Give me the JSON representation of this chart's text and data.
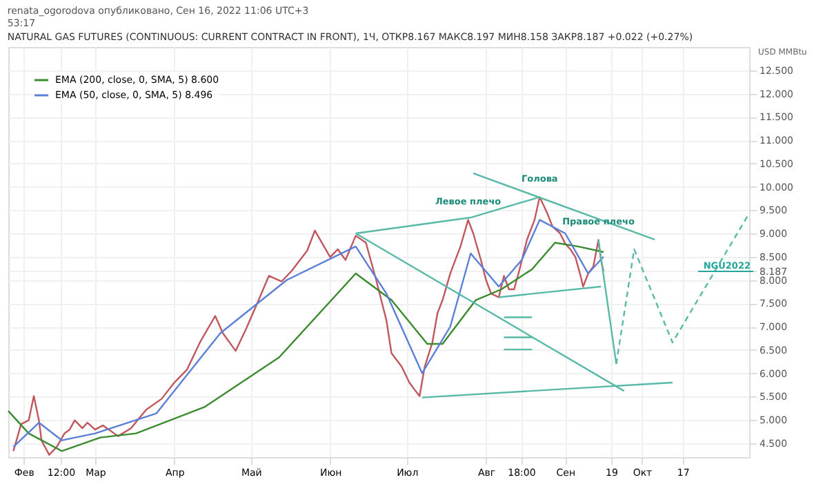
{
  "chart_data": {
    "type": "line",
    "title": "NATURAL GAS FUTURES (CONTINUOUS: CURRENT CONTRACT IN FRONT), 1Ч, ОТКР8.167 МАКС8.197 МИН8.158 ЗАКР8.187 +0.022 (+0.27%)",
    "ylabel": "USD MMBtu",
    "xlim": [
      "2022-01-26",
      "2022-11-12"
    ],
    "ylim": [
      4.2,
      13.0
    ],
    "xticks": [
      {
        "value": "2022-02-01",
        "label": "Фев"
      },
      {
        "value": "2022-02-15T12:00",
        "label": "12:00"
      },
      {
        "value": "2022-03-01",
        "label": "Мар"
      },
      {
        "value": "2022-04-01",
        "label": "Апр"
      },
      {
        "value": "2022-05-01",
        "label": "Май"
      },
      {
        "value": "2022-06-01",
        "label": "Июн"
      },
      {
        "value": "2022-07-01",
        "label": "Июл"
      },
      {
        "value": "2022-08-01",
        "label": "Авг"
      },
      {
        "value": "2022-08-14T18:00",
        "label": "18:00"
      },
      {
        "value": "2022-09-01",
        "label": "Сен"
      },
      {
        "value": "2022-09-19",
        "label": "19"
      },
      {
        "value": "2022-10-01",
        "label": "Окт"
      },
      {
        "value": "2022-10-17",
        "label": "17"
      }
    ],
    "yticks": [
      {
        "value": 4.5,
        "label": "4.500"
      },
      {
        "value": 5.0,
        "label": "5.000"
      },
      {
        "value": 5.5,
        "label": "5.500"
      },
      {
        "value": 6.0,
        "label": "6.000"
      },
      {
        "value": 6.5,
        "label": "6.500"
      },
      {
        "value": 7.0,
        "label": "7.000"
      },
      {
        "value": 7.5,
        "label": "7.500"
      },
      {
        "value": 8.0,
        "label": "8.000"
      },
      {
        "value": 8.187,
        "label": "8.187"
      },
      {
        "value": 8.5,
        "label": "8.500"
      },
      {
        "value": 9.0,
        "label": "9.000"
      },
      {
        "value": 9.5,
        "label": "9.500"
      },
      {
        "value": 10.0,
        "label": "10.000"
      },
      {
        "value": 10.5,
        "label": "10.500"
      },
      {
        "value": 11.0,
        "label": "11.000"
      },
      {
        "value": 11.5,
        "label": "11.500"
      },
      {
        "value": 12.0,
        "label": "12.000"
      },
      {
        "value": 12.5,
        "label": "12.500"
      }
    ],
    "grid": true,
    "legend": "top left",
    "marker": "none",
    "line_style": "solid",
    "series": [
      {
        "color": "#c0575d",
        "x": [
          "2022-01-28",
          "2022-01-30",
          "2022-01-31",
          "2022-02-03",
          "2022-02-05",
          "2022-02-07",
          "2022-02-08",
          "2022-02-11",
          "2022-02-14",
          "2022-02-17",
          "2022-02-19",
          "2022-02-21",
          "2022-02-24",
          "2022-02-26",
          "2022-03-01",
          "2022-03-04",
          "2022-03-10",
          "2022-03-15",
          "2022-03-21",
          "2022-03-27",
          "2022-04-01",
          "2022-04-06",
          "2022-04-11",
          "2022-04-17",
          "2022-04-20",
          "2022-04-25",
          "2022-04-29",
          "2022-05-04",
          "2022-05-08",
          "2022-05-13",
          "2022-05-17",
          "2022-05-23",
          "2022-05-26",
          "2022-06-01",
          "2022-06-04",
          "2022-06-07",
          "2022-06-11",
          "2022-06-15",
          "2022-06-19",
          "2022-06-23",
          "2022-06-25",
          "2022-06-29",
          "2022-07-02",
          "2022-07-04",
          "2022-07-06",
          "2022-07-08",
          "2022-07-11",
          "2022-07-13",
          "2022-07-15",
          "2022-07-18",
          "2022-07-22",
          "2022-07-25",
          "2022-07-27",
          "2022-07-30",
          "2022-08-01",
          "2022-08-03",
          "2022-08-06",
          "2022-08-08",
          "2022-08-10",
          "2022-08-12",
          "2022-08-14",
          "2022-08-17",
          "2022-08-20",
          "2022-08-22",
          "2022-08-25",
          "2022-08-27",
          "2022-08-30",
          "2022-09-01",
          "2022-09-03",
          "2022-09-05",
          "2022-09-07",
          "2022-09-08",
          "2022-09-10",
          "2022-09-12",
          "2022-09-13",
          "2022-09-14",
          "2022-09-15",
          "2022-09-16"
        ],
        "values": [
          4.33,
          4.71,
          4.91,
          4.99,
          5.51,
          4.99,
          4.56,
          4.25,
          4.42,
          4.71,
          4.79,
          4.99,
          4.82,
          4.94,
          4.79,
          4.88,
          4.65,
          4.82,
          5.22,
          5.45,
          5.8,
          6.08,
          6.66,
          7.23,
          6.86,
          6.48,
          6.94,
          7.57,
          8.09,
          7.97,
          8.2,
          8.63,
          9.06,
          8.49,
          8.66,
          8.43,
          8.95,
          8.8,
          8.0,
          7.14,
          6.43,
          6.14,
          5.8,
          5.65,
          5.51,
          6.14,
          6.66,
          7.29,
          7.57,
          8.14,
          8.72,
          9.29,
          9.0,
          8.43,
          8.0,
          7.71,
          7.63,
          8.09,
          7.8,
          7.8,
          8.2,
          8.86,
          9.29,
          9.78,
          9.43,
          9.15,
          9.0,
          8.78,
          8.66,
          8.49,
          8.09,
          7.86,
          8.14,
          8.29,
          8.57,
          8.86,
          8.43,
          8.19
        ]
      },
      {
        "name": "EMA (200, close, 0, SMA, 5) 8.600",
        "color": "#3a8a2e",
        "x": [
          "2022-01-26",
          "2022-02-03",
          "2022-02-16",
          "2022-03-03",
          "2022-03-17",
          "2022-04-13",
          "2022-05-12",
          "2022-06-11",
          "2022-06-25",
          "2022-07-09",
          "2022-07-15",
          "2022-07-28",
          "2022-08-07",
          "2022-08-19",
          "2022-08-28",
          "2022-09-06",
          "2022-09-16"
        ],
        "values": [
          5.19,
          4.71,
          4.33,
          4.62,
          4.71,
          5.28,
          6.34,
          8.14,
          7.57,
          6.63,
          6.63,
          7.57,
          7.8,
          8.23,
          8.8,
          8.72,
          8.6
        ]
      },
      {
        "name": "EMA (50, close, 0, SMA, 5) 8.496",
        "color": "#5b7fd6",
        "x": [
          "2022-01-28",
          "2022-02-07",
          "2022-02-16",
          "2022-03-01",
          "2022-03-25",
          "2022-04-19",
          "2022-05-15",
          "2022-06-11",
          "2022-06-23",
          "2022-07-07",
          "2022-07-18",
          "2022-07-26",
          "2022-08-06",
          "2022-08-15",
          "2022-08-22",
          "2022-09-01",
          "2022-09-10",
          "2022-09-16"
        ],
        "values": [
          4.42,
          4.94,
          4.56,
          4.71,
          5.14,
          6.86,
          8.0,
          8.72,
          7.71,
          6.0,
          7.0,
          8.57,
          7.86,
          8.43,
          9.29,
          9.0,
          8.14,
          8.5
        ]
      },
      {
        "color": "#58b9a8",
        "x": [
          "2022-07-27",
          "2022-10-06"
        ],
        "values": [
          10.29,
          8.87
        ]
      },
      {
        "color": "#58b9a8",
        "x": [
          "2022-06-11",
          "2022-07-26",
          "2022-08-22"
        ],
        "values": [
          9.0,
          9.34,
          9.78
        ]
      },
      {
        "color": "#58b9a8",
        "x": [
          "2022-07-07",
          "2022-10-13"
        ],
        "values": [
          5.48,
          5.8
        ]
      },
      {
        "color": "#58b9a8",
        "x": [
          "2022-06-11",
          "2022-09-24"
        ],
        "values": [
          9.0,
          5.62
        ]
      },
      {
        "color": "#58b9a8",
        "x": [
          "2022-08-06",
          "2022-09-15"
        ],
        "values": [
          7.63,
          7.86
        ]
      },
      {
        "color": "#58b9a8",
        "x": [
          "2022-09-14",
          "2022-09-21"
        ],
        "values": [
          8.86,
          6.2
        ]
      },
      {
        "color": "#58b9a8",
        "line_style": "dashed",
        "x": [
          "2022-09-21",
          "2022-09-28",
          "2022-10-13",
          "2022-11-12"
        ],
        "values": [
          6.2,
          8.66,
          6.66,
          9.43
        ]
      },
      {
        "color": "#58b9a8",
        "x": [
          "2022-08-08",
          "2022-08-19"
        ],
        "values": [
          7.2,
          7.2
        ]
      },
      {
        "color": "#58b9a8",
        "x": [
          "2022-08-08",
          "2022-08-19"
        ],
        "values": [
          6.77,
          6.77
        ]
      },
      {
        "color": "#58b9a8",
        "x": [
          "2022-08-08",
          "2022-08-19"
        ],
        "values": [
          6.51,
          6.51
        ]
      }
    ],
    "ref_lines": [
      {
        "axis": "y",
        "value": 8.187,
        "label": "NGU2022",
        "color": "#26a69a"
      }
    ],
    "annotations": [
      "renata_ogorodova опубликовано, Сен 16, 2022 11:06 UTC+3",
      "53:17",
      {
        "text": "Левое плечо",
        "x": "2022-07-25",
        "y": 9.29
      },
      {
        "text": "Голова",
        "x": "2022-08-22",
        "y": 9.78
      },
      {
        "text": "Правое плечо",
        "x": "2022-09-14",
        "y": 8.86
      }
    ]
  }
}
